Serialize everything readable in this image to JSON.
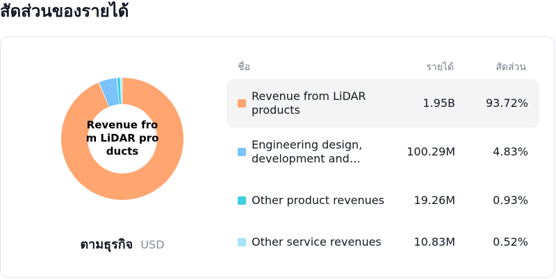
{
  "page": {
    "title": "สัดส่วนของรายได้"
  },
  "table": {
    "headers": {
      "name": "ชื่อ",
      "revenue": "รายได้",
      "share": "สัดส่วน"
    }
  },
  "caption": {
    "label": "ตามธุรกิจ",
    "unit": "USD"
  },
  "donut": {
    "center_label": "Revenue from LiDAR products"
  },
  "colors": {
    "segments": [
      "#ffa570",
      "#7ac3fc",
      "#40cfde",
      "#a6e3fb"
    ]
  },
  "chart_data": {
    "type": "pie",
    "title": "สัดส่วนของรายได้",
    "categories": [
      "Revenue from LiDAR products",
      "Engineering design, development and…",
      "Other product revenues",
      "Other service revenues"
    ],
    "values": [
      93.72,
      4.83,
      0.93,
      0.52
    ],
    "revenue": [
      "1.95B",
      "100.29M",
      "19.26M",
      "10.83M"
    ],
    "share": [
      "93.72%",
      "4.83%",
      "0.93%",
      "0.52%"
    ],
    "unit": "USD"
  }
}
